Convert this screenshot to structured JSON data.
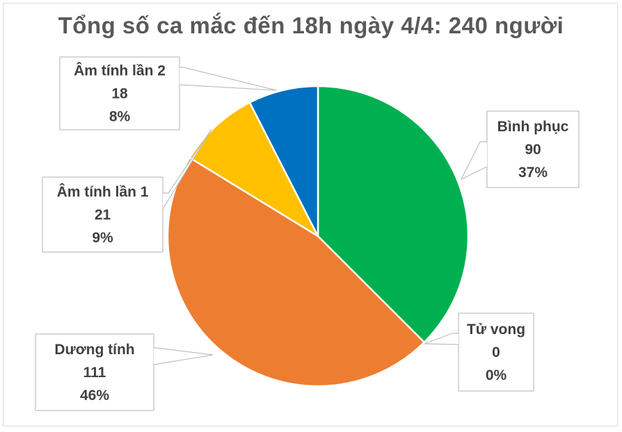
{
  "chart_data": {
    "type": "pie",
    "title": "Tổng số ca mắc đến 18h ngày 4/4: 240 người",
    "slices": [
      {
        "name": "Bình phục",
        "value": 90,
        "label_value": "90",
        "label_percent": "37%",
        "color": "#00b050"
      },
      {
        "name": "Tử vong",
        "value": 0,
        "label_value": "0",
        "label_percent": "0%",
        "color": "#7f7f7f"
      },
      {
        "name": "Dương tính",
        "value": 111,
        "label_value": "111",
        "label_percent": "46%",
        "color": "#ed7d31"
      },
      {
        "name": "Âm tính lần 1",
        "value": 21,
        "label_value": "21",
        "label_percent": "9%",
        "color": "#ffc000"
      },
      {
        "name": "Âm tính lần 2",
        "value": 18,
        "label_value": "18",
        "label_percent": "8%",
        "color": "#0070c0"
      }
    ]
  }
}
